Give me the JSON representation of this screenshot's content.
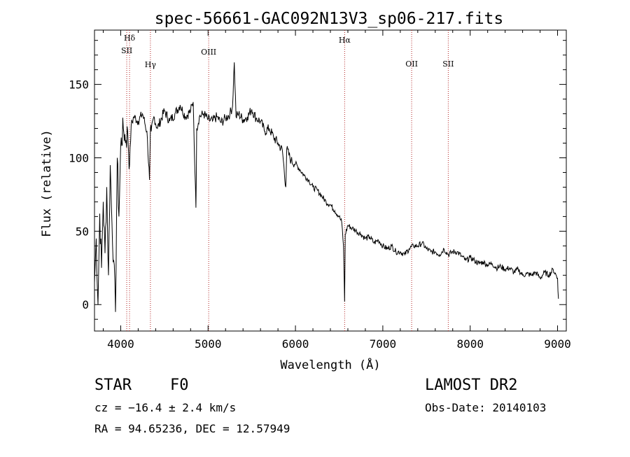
{
  "chart_data": {
    "type": "line",
    "title": "spec-56661-GAC092N13V3_sp06-217.fits",
    "xlabel": "Wavelength (Å)",
    "ylabel": "Flux (relative)",
    "xlim": [
      3700,
      9100
    ],
    "ylim": [
      -18,
      187
    ],
    "xticks": [
      4000,
      5000,
      6000,
      7000,
      8000,
      9000
    ],
    "yticks": [
      0,
      50,
      100,
      150
    ],
    "grid": false,
    "series": [
      {
        "x": [
          3700,
          3720,
          3740,
          3760,
          3780,
          3800,
          3820,
          3840,
          3860,
          3880,
          3900,
          3920,
          3940,
          3960,
          3980,
          4000,
          4030,
          4060,
          4080,
          4101,
          4120,
          4150,
          4200,
          4250,
          4300,
          4330,
          4340,
          4350,
          4380,
          4420,
          4500,
          4560,
          4620,
          4680,
          4740,
          4800,
          4830,
          4850,
          4861,
          4870,
          4900,
          4950,
          5000,
          5050,
          5100,
          5150,
          5200,
          5250,
          5280,
          5300,
          5320,
          5350,
          5400,
          5450,
          5500,
          5550,
          5600,
          5650,
          5700,
          5750,
          5800,
          5850,
          5890,
          5900,
          5950,
          6000,
          6050,
          6100,
          6150,
          6200,
          6250,
          6300,
          6350,
          6400,
          6450,
          6500,
          6530,
          6550,
          6563,
          6570,
          6600,
          6650,
          6700,
          6750,
          6800,
          6850,
          6900,
          6950,
          7000,
          7050,
          7100,
          7150,
          7200,
          7250,
          7300,
          7350,
          7400,
          7450,
          7500,
          7550,
          7600,
          7650,
          7700,
          7750,
          7800,
          7850,
          7900,
          7950,
          8000,
          8050,
          8100,
          8150,
          8200,
          8250,
          8300,
          8350,
          8400,
          8450,
          8500,
          8550,
          8600,
          8650,
          8700,
          8750,
          8800,
          8850,
          8900,
          8950,
          9000,
          9010
        ],
        "values": [
          15,
          45,
          0,
          62,
          25,
          70,
          35,
          80,
          20,
          95,
          55,
          30,
          -5,
          100,
          60,
          108,
          120,
          112,
          118,
          95,
          122,
          128,
          125,
          130,
          118,
          85,
          120,
          118,
          128,
          120,
          132,
          125,
          130,
          136,
          128,
          132,
          138,
          90,
          66,
          120,
          128,
          130,
          126,
          125,
          128,
          124,
          127,
          130,
          135,
          165,
          128,
          130,
          126,
          128,
          133,
          127,
          125,
          118,
          120,
          114,
          110,
          105,
          80,
          106,
          98,
          96,
          92,
          88,
          85,
          80,
          78,
          74,
          70,
          68,
          64,
          60,
          56,
          40,
          2,
          48,
          54,
          52,
          50,
          48,
          45,
          46,
          42,
          44,
          40,
          38,
          40,
          36,
          36,
          34,
          38,
          40,
          40,
          42,
          38,
          36,
          36,
          34,
          38,
          34,
          36,
          36,
          33,
          30,
          32,
          30,
          28,
          29,
          27,
          28,
          25,
          26,
          24,
          25,
          22,
          24,
          20,
          21,
          20,
          22,
          18,
          22,
          20,
          24,
          18,
          4
        ]
      }
    ],
    "lines": [
      {
        "label": "Hδ",
        "x": 4101
      },
      {
        "label": "SII",
        "x": 4069
      },
      {
        "label": "Hγ",
        "x": 4340
      },
      {
        "label": "OIII",
        "x": 5007
      },
      {
        "label": "Hα",
        "x": 6563
      },
      {
        "label": "OII",
        "x": 7330
      },
      {
        "label": "SII",
        "x": 7749
      }
    ]
  },
  "info": {
    "object_class": "STAR",
    "subclass": "F0",
    "survey": "LAMOST DR2",
    "cz": "cz = −16.4 ± 2.4 km/s",
    "obs_date": "Obs-Date: 20140103",
    "coords": "RA =  94.65236, DEC =  12.57949"
  },
  "colors": {
    "spectrum": "#000000",
    "line_markers": "#b22222"
  }
}
